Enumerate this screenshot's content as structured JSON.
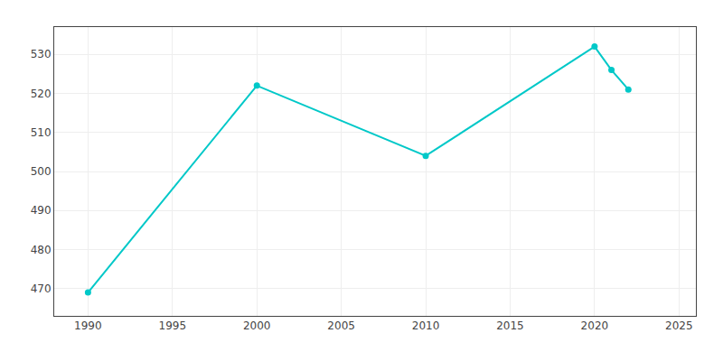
{
  "chart_data": {
    "type": "line",
    "x": [
      1990,
      2000,
      2010,
      2020,
      2021,
      2022
    ],
    "values": [
      469,
      522,
      504,
      532,
      526,
      521
    ],
    "color": "#00C8C8",
    "marker": "circle",
    "xlim": [
      1988,
      2026
    ],
    "ylim": [
      463,
      537
    ],
    "xticks": [
      1990,
      1995,
      2000,
      2005,
      2010,
      2015,
      2020,
      2025
    ],
    "yticks": [
      470,
      480,
      490,
      500,
      510,
      520,
      530
    ],
    "grid": true
  }
}
